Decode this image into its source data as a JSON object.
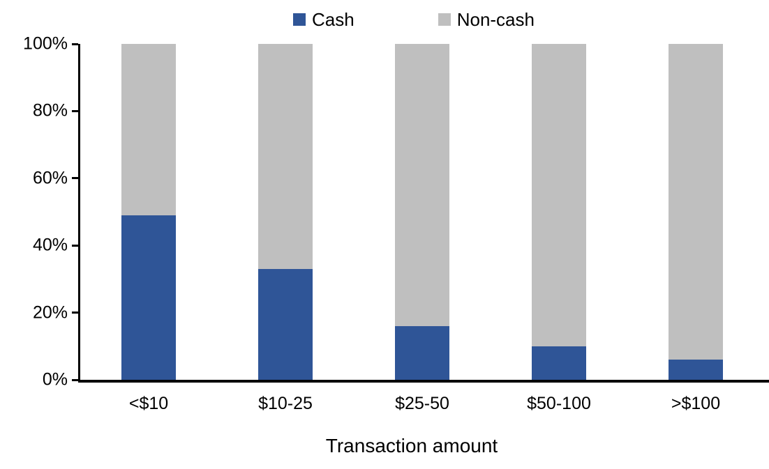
{
  "chart_data": {
    "type": "bar",
    "variant": "stacked-100-percent",
    "categories": [
      "<$10",
      "$10-25",
      "$25-50",
      "$50-100",
      ">$100"
    ],
    "series": [
      {
        "name": "Cash",
        "color": "#2F5597",
        "values": [
          49,
          33,
          16,
          10,
          6
        ]
      },
      {
        "name": "Non-cash",
        "color": "#BFBFBF",
        "values": [
          51,
          67,
          84,
          90,
          94
        ]
      }
    ],
    "title": "",
    "xlabel": "Transaction amount",
    "ylabel": "",
    "ylim": [
      0,
      100
    ],
    "y_ticks": [
      "0%",
      "20%",
      "40%",
      "60%",
      "80%",
      "100%"
    ],
    "y_tick_values": [
      0,
      20,
      40,
      60,
      80,
      100
    ],
    "legend_position": "top",
    "grid": false
  },
  "colors": {
    "axis": "#000000",
    "text": "#000000",
    "background": "#FFFFFF",
    "cash": "#2F5597",
    "noncash": "#BFBFBF"
  }
}
